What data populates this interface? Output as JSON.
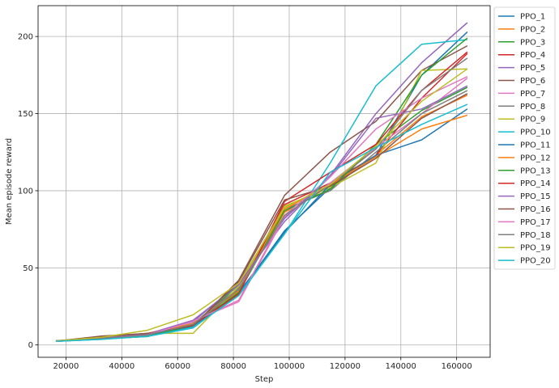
{
  "chart_data": {
    "type": "line",
    "title": "",
    "xlabel": "Step",
    "ylabel": "Mean episode reward",
    "xlim": [
      10000,
      172000
    ],
    "ylim": [
      -8,
      220
    ],
    "xticks": [
      20000,
      40000,
      60000,
      80000,
      100000,
      120000,
      140000,
      160000
    ],
    "yticks": [
      0,
      50,
      100,
      150,
      200
    ],
    "grid": true,
    "legend_position": "outside-right",
    "x": [
      16384,
      32768,
      49152,
      65536,
      81920,
      98304,
      114688,
      131072,
      147456,
      163840
    ],
    "series": [
      {
        "name": "PPO_1",
        "color": "#1f77b4",
        "values": [
          2.5,
          4.0,
          6.5,
          12.0,
          33.0,
          74.0,
          102.0,
          123.0,
          175.0,
          203.0
        ]
      },
      {
        "name": "PPO_2",
        "color": "#ff7f0e",
        "values": [
          2.3,
          3.9,
          6.8,
          12.5,
          35.0,
          86.0,
          103.0,
          123.0,
          148.0,
          162.0
        ]
      },
      {
        "name": "PPO_3",
        "color": "#2ca02c",
        "values": [
          2.6,
          4.1,
          6.6,
          12.6,
          39.0,
          90.0,
          100.0,
          130.0,
          152.0,
          167.0
        ]
      },
      {
        "name": "PPO_4",
        "color": "#d62728",
        "values": [
          2.4,
          4.3,
          7.0,
          13.0,
          36.0,
          91.0,
          105.0,
          123.0,
          160.0,
          189.0
        ]
      },
      {
        "name": "PPO_5",
        "color": "#9467bd",
        "values": [
          2.8,
          4.5,
          7.2,
          15.0,
          40.0,
          80.0,
          110.0,
          150.0,
          183.0,
          209.0
        ]
      },
      {
        "name": "PPO_6",
        "color": "#8c564b",
        "values": [
          2.5,
          5.8,
          7.4,
          12.2,
          42.0,
          97.0,
          125.0,
          145.0,
          178.0,
          194.0
        ]
      },
      {
        "name": "PPO_7",
        "color": "#e377c2",
        "values": [
          2.3,
          4.0,
          6.3,
          15.5,
          28.0,
          83.0,
          105.0,
          128.0,
          150.0,
          173.0
        ]
      },
      {
        "name": "PPO_8",
        "color": "#7f7f7f",
        "values": [
          2.7,
          4.2,
          6.4,
          14.0,
          37.0,
          88.0,
          100.0,
          125.0,
          150.0,
          165.0
        ]
      },
      {
        "name": "PPO_9",
        "color": "#bcbd22",
        "values": [
          2.6,
          4.6,
          7.6,
          7.5,
          38.0,
          90.0,
          102.0,
          118.0,
          178.0,
          179.0
        ]
      },
      {
        "name": "PPO_10",
        "color": "#17becf",
        "values": [
          2.4,
          3.8,
          5.6,
          11.0,
          33.0,
          72.0,
          118.0,
          168.0,
          195.0,
          198.0
        ]
      },
      {
        "name": "PPO_11",
        "color": "#1f77b4",
        "values": [
          2.5,
          3.7,
          6.5,
          11.8,
          34.0,
          73.0,
          104.0,
          123.0,
          133.0,
          153.0
        ]
      },
      {
        "name": "PPO_12",
        "color": "#ff7f0e",
        "values": [
          2.6,
          4.0,
          7.5,
          13.8,
          36.0,
          88.0,
          104.0,
          122.0,
          140.0,
          149.0
        ]
      },
      {
        "name": "PPO_13",
        "color": "#2ca02c",
        "values": [
          2.4,
          4.0,
          5.4,
          12.8,
          34.0,
          87.0,
          101.0,
          130.0,
          175.0,
          199.0
        ]
      },
      {
        "name": "PPO_14",
        "color": "#d62728",
        "values": [
          2.5,
          4.1,
          7.0,
          12.9,
          33.0,
          93.0,
          112.0,
          130.0,
          165.0,
          190.0
        ]
      },
      {
        "name": "PPO_15",
        "color": "#9467bd",
        "values": [
          2.7,
          4.4,
          7.1,
          16.0,
          39.0,
          82.0,
          109.0,
          147.0,
          153.0,
          168.0
        ]
      },
      {
        "name": "PPO_16",
        "color": "#8c564b",
        "values": [
          2.5,
          5.5,
          7.5,
          12.3,
          41.0,
          94.0,
          103.0,
          121.0,
          147.0,
          163.0
        ]
      },
      {
        "name": "PPO_17",
        "color": "#e377c2",
        "values": [
          2.3,
          3.9,
          6.6,
          15.2,
          29.0,
          84.0,
          109.0,
          140.0,
          160.0,
          174.0
        ]
      },
      {
        "name": "PPO_18",
        "color": "#7f7f7f",
        "values": [
          2.7,
          4.2,
          6.5,
          13.4,
          36.0,
          84.0,
          104.0,
          127.0,
          165.0,
          186.0
        ]
      },
      {
        "name": "PPO_19",
        "color": "#bcbd22",
        "values": [
          2.6,
          5.0,
          9.5,
          19.5,
          40.0,
          89.0,
          104.0,
          129.0,
          158.0,
          179.0
        ]
      },
      {
        "name": "PPO_20",
        "color": "#17becf",
        "values": [
          2.4,
          3.6,
          5.6,
          11.5,
          32.0,
          72.0,
          112.0,
          128.0,
          143.0,
          156.0
        ]
      }
    ]
  }
}
